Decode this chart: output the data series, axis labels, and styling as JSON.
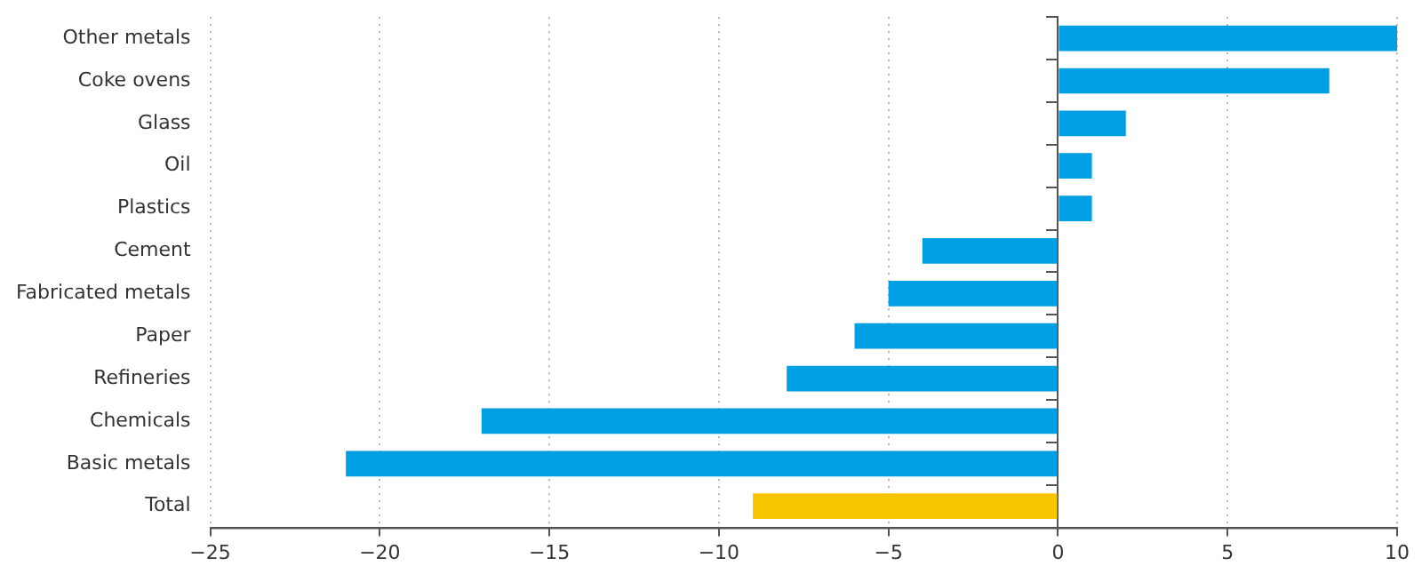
{
  "chart_data": {
    "type": "bar",
    "orientation": "horizontal",
    "categories": [
      "Other metals",
      "Coke ovens",
      "Glass",
      "Oil",
      "Plastics",
      "Cement",
      "Fabricated metals",
      "Paper",
      "Refineries",
      "Chemicals",
      "Basic metals",
      "Total"
    ],
    "values": [
      10,
      8,
      2,
      1,
      1,
      -4,
      -5,
      -6,
      -8,
      -17,
      -21,
      -9
    ],
    "colors": [
      "#009fe3",
      "#009fe3",
      "#009fe3",
      "#009fe3",
      "#009fe3",
      "#009fe3",
      "#009fe3",
      "#009fe3",
      "#009fe3",
      "#009fe3",
      "#009fe3",
      "#f8c600"
    ],
    "xlim": [
      -25,
      10
    ],
    "xticks": [
      {
        "value": -25,
        "label": "−25"
      },
      {
        "value": -20,
        "label": "−20"
      },
      {
        "value": -15,
        "label": "−15"
      },
      {
        "value": -10,
        "label": "−10"
      },
      {
        "value": -5,
        "label": "−5"
      },
      0,
      5,
      10
    ],
    "grid": "x",
    "legend": false
  }
}
